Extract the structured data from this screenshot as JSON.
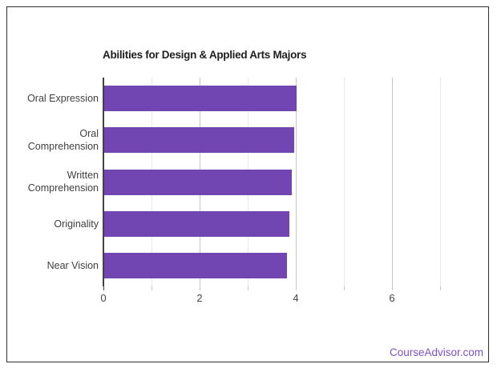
{
  "chart_data": {
    "type": "bar",
    "orientation": "horizontal",
    "title": "Abilities for Design & Applied Arts Majors",
    "categories": [
      "Oral Expression",
      "Oral Comprehension",
      "Written Comprehension",
      "Originality",
      "Near Vision"
    ],
    "values": [
      4.0,
      3.95,
      3.9,
      3.85,
      3.8
    ],
    "xlabel": "",
    "ylabel": "",
    "xlim": [
      0,
      7
    ],
    "x_tick_values": [
      0,
      2,
      4,
      6
    ],
    "x_tick_labels": [
      "0",
      "2",
      "4",
      "6"
    ],
    "minor_gridline_values": [
      1,
      3,
      5,
      7
    ],
    "grid": true,
    "legend": "none",
    "colors": {
      "bar": "#7246b2",
      "axis_baseline": "#424242",
      "gridline_major": "#c6c6c6",
      "gridline_minor": "#e9e9e9",
      "title_text": "#1f1f1f",
      "category_text": "#3f3f3f",
      "tick_text": "#444444",
      "tick_mark": "#c6c6c6"
    }
  },
  "footer": {
    "credit": "CourseAdvisor.com",
    "credit_color": "#7c52c8"
  }
}
